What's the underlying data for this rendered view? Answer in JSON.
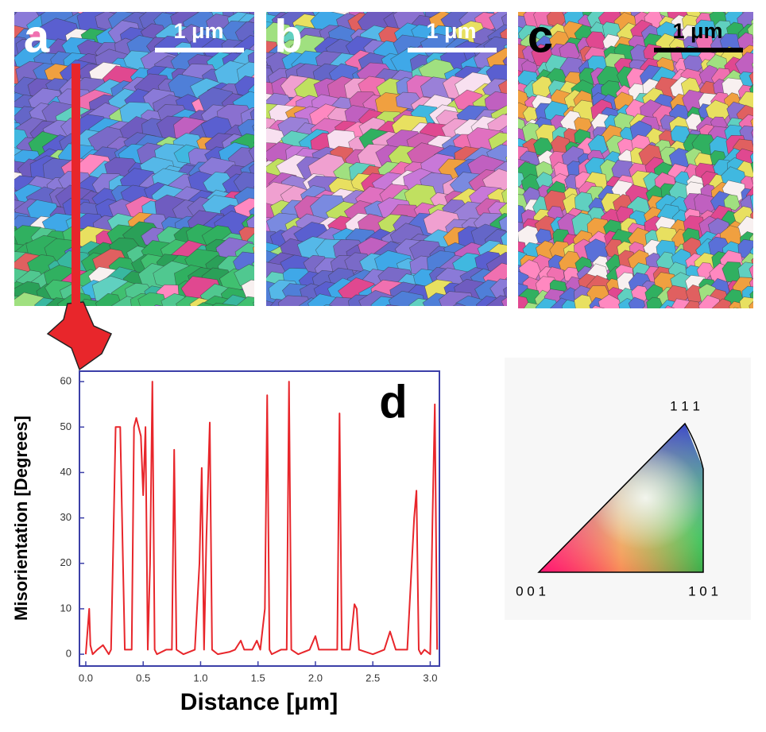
{
  "panels": [
    {
      "label": "a",
      "scale_bar": "1 μm"
    },
    {
      "label": "b",
      "scale_bar": "1 μm"
    },
    {
      "label": "c",
      "scale_bar": "1 μm"
    }
  ],
  "chart_data": {
    "type": "line",
    "annotation": "d",
    "x_label": "Distance [μm]",
    "y_label": "Misorientation [Degrees]",
    "color": "#e8262b",
    "x": [
      0.0,
      0.03,
      0.04,
      0.06,
      0.1,
      0.15,
      0.2,
      0.22,
      0.24,
      0.26,
      0.3,
      0.32,
      0.34,
      0.4,
      0.42,
      0.44,
      0.48,
      0.5,
      0.52,
      0.54,
      0.56,
      0.58,
      0.6,
      0.62,
      0.7,
      0.75,
      0.77,
      0.79,
      0.85,
      0.95,
      0.99,
      1.01,
      1.03,
      1.05,
      1.08,
      1.1,
      1.15,
      1.25,
      1.3,
      1.35,
      1.38,
      1.45,
      1.49,
      1.52,
      1.56,
      1.58,
      1.6,
      1.62,
      1.7,
      1.75,
      1.77,
      1.79,
      1.85,
      1.95,
      2.0,
      2.03,
      2.1,
      2.19,
      2.21,
      2.23,
      2.3,
      2.34,
      2.36,
      2.38,
      2.5,
      2.6,
      2.65,
      2.7,
      2.8,
      2.86,
      2.88,
      2.9,
      2.92,
      2.95,
      3.0,
      3.02,
      3.04,
      3.06
    ],
    "values": [
      0,
      10,
      2,
      0,
      1,
      2,
      0,
      1,
      25,
      50,
      50,
      25,
      1,
      1,
      50,
      52,
      48,
      35,
      50,
      1,
      20,
      60,
      1,
      0,
      1,
      1,
      45,
      1,
      0,
      1,
      20,
      41,
      1,
      25,
      51,
      1,
      0,
      0.5,
      1,
      3,
      1,
      1,
      3,
      1,
      10,
      57,
      1,
      0,
      1,
      1,
      60,
      1,
      0,
      1,
      4,
      1,
      1,
      1,
      53,
      1,
      1,
      11,
      10,
      1,
      0,
      1,
      5,
      1,
      1,
      30,
      36,
      1,
      0,
      1,
      0,
      30,
      55,
      1
    ],
    "xlim": [
      -0.055,
      3.08
    ],
    "ylim": [
      -2.6,
      62.3
    ],
    "xticks": [
      {
        "value": 0,
        "label": "0.0"
      },
      0.5,
      {
        "value": 1,
        "label": "1.0"
      },
      1.5,
      {
        "value": 2,
        "label": "2.0"
      },
      2.5,
      {
        "value": 3,
        "label": "3.0"
      }
    ],
    "yticks": [
      0,
      10,
      20,
      30,
      40,
      50,
      60
    ]
  },
  "ipf": {
    "top": "1 1 1",
    "left": "0 0 1",
    "right": "1 0 1"
  }
}
